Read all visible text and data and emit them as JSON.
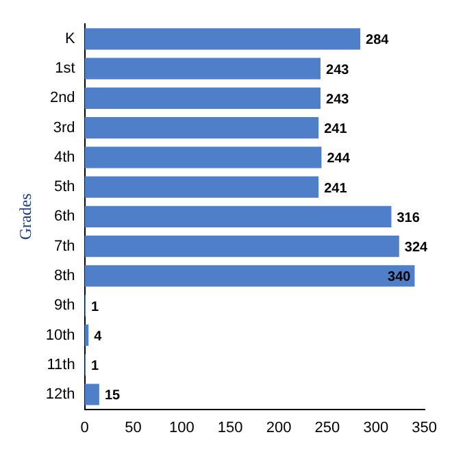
{
  "chart_data": {
    "type": "bar",
    "orientation": "horizontal",
    "ylabel": "Grades",
    "categories": [
      "K",
      "1st",
      "2nd",
      "3rd",
      "4th",
      "5th",
      "6th",
      "7th",
      "8th",
      "9th",
      "10th",
      "11th",
      "12th"
    ],
    "values": [
      284,
      243,
      243,
      241,
      244,
      241,
      316,
      324,
      340,
      1,
      4,
      1,
      15
    ],
    "color": "#4f7fc9",
    "xlim": [
      0,
      350
    ],
    "xticks": [
      0,
      50,
      100,
      150,
      200,
      250,
      300,
      350
    ],
    "grid": false,
    "legend": false,
    "data_labels": true
  }
}
